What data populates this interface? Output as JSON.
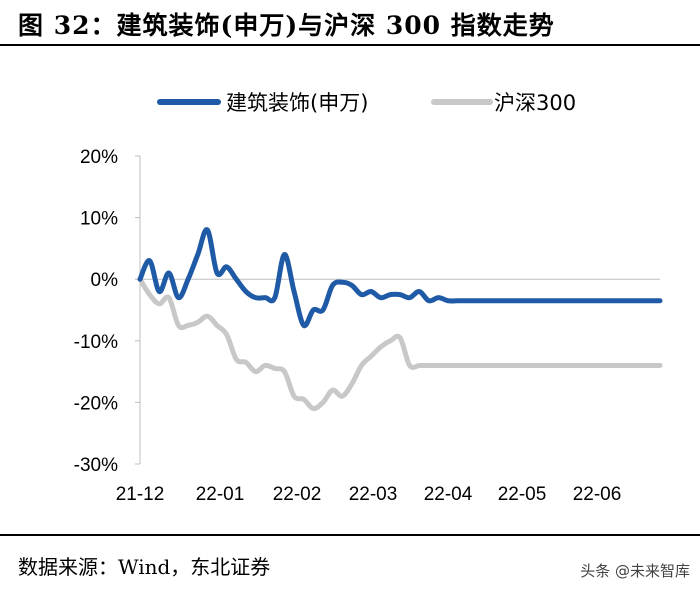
{
  "header": {
    "title": "图 32：建筑装饰(申万)与沪深 300 指数走势"
  },
  "footer": {
    "source": "数据来源：Wind，东北证券",
    "watermark": "头条 @未来智库"
  },
  "chart_data": {
    "type": "line",
    "title": "图 32：建筑装饰(申万)与沪深 300 指数走势",
    "xlabel": "",
    "ylabel": "",
    "ylim": [
      -30,
      20
    ],
    "yticks": [
      "20%",
      "10%",
      "0%",
      "-10%",
      "-20%",
      "-30%"
    ],
    "ytick_values": [
      20,
      10,
      0,
      -10,
      -20,
      -30
    ],
    "xticks": [
      "21-12",
      "22-01",
      "22-02",
      "22-03",
      "22-04",
      "22-05",
      "22-06"
    ],
    "legend_position": "top",
    "grid": false,
    "colors": {
      "series1": "#1f5aa6",
      "series2": "#c8c8c8"
    },
    "series": [
      {
        "name": "建筑装饰(申万)",
        "x": [
          0,
          0.5,
          1,
          1.5,
          2,
          2.5,
          3,
          3.5,
          4,
          4.5,
          5,
          5.5,
          6,
          6.5,
          7,
          7.5,
          8,
          8.5,
          9,
          9.5,
          10,
          10.5,
          11,
          11.5,
          12,
          12.5,
          13,
          13.5,
          14,
          14.5,
          15,
          15.5,
          16,
          16.5,
          17,
          17.5,
          18,
          18.5,
          19,
          19.5,
          20,
          20.5,
          21,
          21.5,
          22,
          22.5,
          23,
          23.5,
          24,
          24.5,
          25,
          25.5,
          26,
          26.5,
          27
        ],
        "values": [
          0,
          3,
          -2,
          1,
          -3,
          0,
          4,
          8,
          1,
          2,
          0,
          -2,
          -3,
          -3,
          -3,
          4,
          -2,
          -7.5,
          -5,
          -5,
          -1,
          -0.5,
          -1,
          -2.5,
          -2,
          -3,
          -2.5,
          -2.5,
          -3,
          -2,
          -3.5,
          -3,
          -3.5,
          -3.5,
          -3.5,
          -3.5,
          -3.5,
          -3.5,
          -3.5,
          -3.5,
          -3.5,
          -3.5,
          -3.5,
          -3.5,
          -3.5,
          -3.5,
          -3.5,
          -3.5,
          -3.5,
          -3.5,
          -3.5,
          -3.5,
          -3.5,
          -3.5,
          -3.5
        ]
      },
      {
        "name": "沪深300",
        "x": [
          0,
          0.5,
          1,
          1.5,
          2,
          2.5,
          3,
          3.5,
          4,
          4.5,
          5,
          5.5,
          6,
          6.5,
          7,
          7.5,
          8,
          8.5,
          9,
          9.5,
          10,
          10.5,
          11,
          11.5,
          12,
          12.5,
          13,
          13.5,
          14,
          14.5,
          15,
          15.5,
          16,
          16.5,
          17,
          17.5,
          18,
          18.5,
          19,
          19.5,
          20,
          20.5,
          21,
          21.5,
          22,
          22.5,
          23,
          23.5,
          24,
          24.5,
          25,
          25.5,
          26,
          26.5,
          27
        ],
        "values": [
          0,
          -2.5,
          -4,
          -3,
          -7.5,
          -7.5,
          -7,
          -6,
          -7.5,
          -9,
          -13,
          -13.5,
          -15,
          -14,
          -14.5,
          -15,
          -19,
          -19.5,
          -21,
          -20,
          -18,
          -19,
          -17,
          -14,
          -12.5,
          -11,
          -10,
          -9.5,
          -14,
          -14,
          -14,
          -14,
          -14,
          -14,
          -14,
          -14,
          -14,
          -14,
          -14,
          -14,
          -14,
          -14,
          -14,
          -14,
          -14,
          -14,
          -14,
          -14,
          -14,
          -14,
          -14,
          -14,
          -14,
          -14,
          -14
        ]
      }
    ]
  }
}
